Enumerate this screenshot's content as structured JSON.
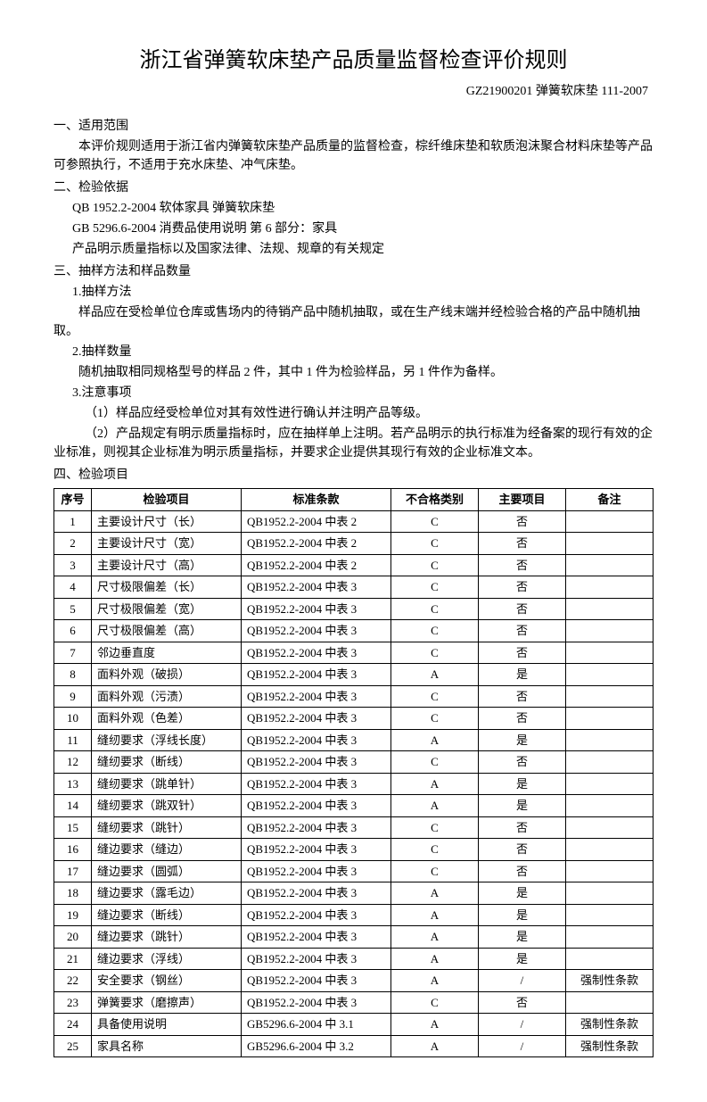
{
  "title": "浙江省弹簧软床垫产品质量监督检查评价规则",
  "subtitle": "GZ21900201 弹簧软床垫 111-2007",
  "s1": {
    "head": "一、适用范围",
    "p1": "本评价规则适用于浙江省内弹簧软床垫产品质量的监督检查，棕纤维床垫和软质泡沫聚合材料床垫等产品可参照执行，不适用于充水床垫、冲气床垫。"
  },
  "s2": {
    "head": "二、检验依据",
    "p1": "QB 1952.2-2004  软体家具  弹簧软床垫",
    "p2": "GB 5296.6-2004  消费品使用说明  第 6 部分：家具",
    "p3": "产品明示质量指标以及国家法律、法规、规章的有关规定"
  },
  "s3": {
    "head": "三、抽样方法和样品数量",
    "p1": "1.抽样方法",
    "p2": "样品应在受检单位仓库或售场内的待销产品中随机抽取，或在生产线末端并经检验合格的产品中随机抽取。",
    "p3": "2.抽样数量",
    "p4": "随机抽取相同规格型号的样品 2 件，其中 1 件为检验样品，另 1 件作为备样。",
    "p5": "3.注意事项",
    "p6": "（1）样品应经受检单位对其有效性进行确认并注明产品等级。",
    "p7": "（2）产品规定有明示质量指标时，应在抽样单上注明。若产品明示的执行标准为经备案的现行有效的企业标准，则视其企业标准为明示质量指标，并要求企业提供其现行有效的企业标准文本。"
  },
  "s4": {
    "head": "四、检验项目"
  },
  "table": {
    "headers": [
      "序号",
      "检验项目",
      "标准条款",
      "不合格类别",
      "主要项目",
      "备注"
    ],
    "rows": [
      [
        "1",
        "主要设计尺寸（长）",
        "QB1952.2-2004 中表 2",
        "C",
        "否",
        ""
      ],
      [
        "2",
        "主要设计尺寸（宽）",
        "QB1952.2-2004 中表 2",
        "C",
        "否",
        ""
      ],
      [
        "3",
        "主要设计尺寸（高）",
        "QB1952.2-2004 中表 2",
        "C",
        "否",
        ""
      ],
      [
        "4",
        "尺寸极限偏差（长）",
        "QB1952.2-2004 中表 3",
        "C",
        "否",
        ""
      ],
      [
        "5",
        "尺寸极限偏差（宽）",
        "QB1952.2-2004 中表 3",
        "C",
        "否",
        ""
      ],
      [
        "6",
        "尺寸极限偏差（高）",
        "QB1952.2-2004 中表 3",
        "C",
        "否",
        ""
      ],
      [
        "7",
        "邻边垂直度",
        "QB1952.2-2004 中表 3",
        "C",
        "否",
        ""
      ],
      [
        "8",
        "面料外观（破损）",
        "QB1952.2-2004 中表 3",
        "A",
        "是",
        ""
      ],
      [
        "9",
        "面料外观（污渍）",
        "QB1952.2-2004 中表 3",
        "C",
        "否",
        ""
      ],
      [
        "10",
        "面料外观（色差）",
        "QB1952.2-2004 中表 3",
        "C",
        "否",
        ""
      ],
      [
        "11",
        "缝纫要求（浮线长度）",
        "QB1952.2-2004 中表 3",
        "A",
        "是",
        ""
      ],
      [
        "12",
        "缝纫要求（断线）",
        "QB1952.2-2004 中表 3",
        "C",
        "否",
        ""
      ],
      [
        "13",
        "缝纫要求（跳单针）",
        "QB1952.2-2004 中表 3",
        "A",
        "是",
        ""
      ],
      [
        "14",
        "缝纫要求（跳双针）",
        "QB1952.2-2004 中表 3",
        "A",
        "是",
        ""
      ],
      [
        "15",
        "缝纫要求（跳针）",
        "QB1952.2-2004 中表 3",
        "C",
        "否",
        ""
      ],
      [
        "16",
        "缝边要求（缝边）",
        "QB1952.2-2004 中表 3",
        "C",
        "否",
        ""
      ],
      [
        "17",
        "缝边要求（圆弧）",
        "QB1952.2-2004 中表 3",
        "C",
        "否",
        ""
      ],
      [
        "18",
        "缝边要求（露毛边）",
        "QB1952.2-2004 中表 3",
        "A",
        "是",
        ""
      ],
      [
        "19",
        "缝边要求（断线）",
        "QB1952.2-2004 中表 3",
        "A",
        "是",
        ""
      ],
      [
        "20",
        "缝边要求（跳针）",
        "QB1952.2-2004 中表 3",
        "A",
        "是",
        ""
      ],
      [
        "21",
        "缝边要求（浮线）",
        "QB1952.2-2004 中表 3",
        "A",
        "是",
        ""
      ],
      [
        "22",
        "安全要求（钢丝）",
        "QB1952.2-2004 中表 3",
        "A",
        "/",
        "强制性条款"
      ],
      [
        "23",
        "弹簧要求（磨擦声）",
        "QB1952.2-2004 中表 3",
        "C",
        "否",
        ""
      ],
      [
        "24",
        "具备使用说明",
        "GB5296.6-2004 中 3.1",
        "A",
        "/",
        "强制性条款"
      ],
      [
        "25",
        "家具名称",
        "GB5296.6-2004 中 3.2",
        "A",
        "/",
        "强制性条款"
      ]
    ]
  }
}
